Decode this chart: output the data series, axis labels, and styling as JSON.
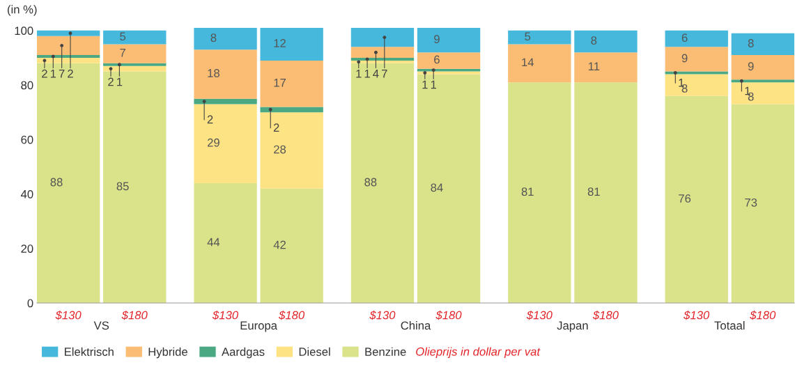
{
  "chart_data": {
    "type": "bar",
    "stacked": true,
    "ylabel": "(in %)",
    "categories": [
      "$130",
      "$180",
      "$130",
      "$180",
      "$130",
      "$180",
      "$130",
      "$180",
      "$130",
      "$180"
    ],
    "series": [
      {
        "name": "Benzine",
        "color": "#dbe38a",
        "values": [
          88,
          85,
          44,
          42,
          88,
          84,
          81,
          81,
          76,
          73
        ]
      },
      {
        "name": "Diesel",
        "color": "#fde383",
        "values": [
          2,
          2,
          29,
          28,
          1,
          1,
          null,
          null,
          8,
          8
        ]
      },
      {
        "name": "Aardgas",
        "color": "#4aa883",
        "values": [
          1,
          1,
          2,
          2,
          1,
          1,
          null,
          null,
          1,
          1
        ]
      },
      {
        "name": "Hybride",
        "color": "#fbbd73",
        "values": [
          7,
          7,
          18,
          17,
          4,
          6,
          14,
          11,
          9,
          9
        ]
      },
      {
        "name": "Elektrisch",
        "color": "#45b8dc",
        "values": [
          2,
          5,
          8,
          12,
          7,
          9,
          5,
          8,
          6,
          8
        ]
      }
    ],
    "ylim": [
      0,
      101.5
    ],
    "yticks": [
      0,
      20,
      40,
      60,
      80,
      100
    ],
    "data_labels": true,
    "grid": false,
    "legend": "bottom",
    "annotations": [
      "VS",
      "Europa",
      "China",
      "Japan",
      "Totaal",
      "Olieprijs in dollar per vat"
    ]
  }
}
